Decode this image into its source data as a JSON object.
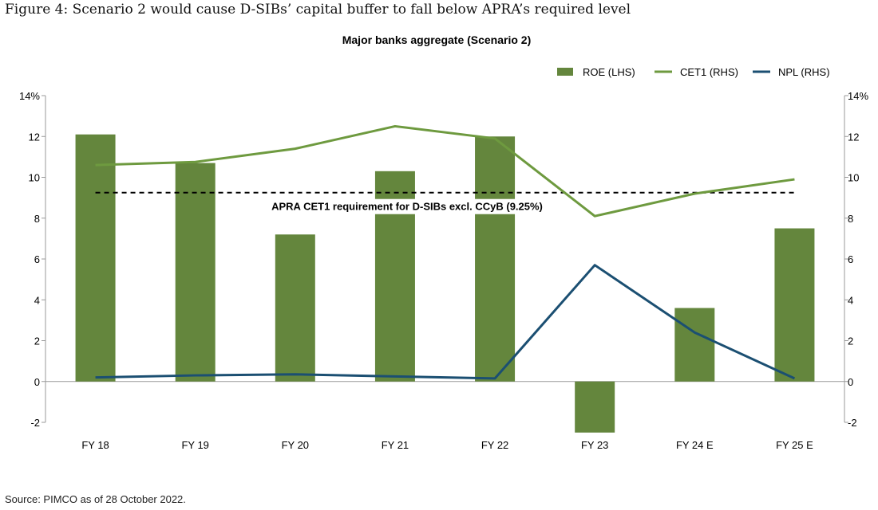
{
  "figure_title": "Figure 4: Scenario 2 would cause D-SIBs’ capital buffer to fall below APRA’s required level",
  "source": "Source: PIMCO as of 28 October 2022.",
  "colors": {
    "roe": "#64863d",
    "cet1": "#6e9a3f",
    "npl": "#1b4f72",
    "reference": "#000000"
  },
  "chart_data": {
    "type": "bar",
    "title": "Major banks aggregate (Scenario 2)",
    "categories": [
      "FY 18",
      "FY 19",
      "FY 20",
      "FY 21",
      "FY 22",
      "FY 23",
      "FY 24 E",
      "FY 25 E"
    ],
    "ylim": [
      -2,
      14
    ],
    "yticks": [
      -2,
      0,
      2,
      4,
      6,
      8,
      10,
      12,
      14
    ],
    "ytick_labels_left": [
      "-2",
      "0",
      "2",
      "4",
      "6",
      "8",
      "10",
      "12",
      "14%"
    ],
    "ytick_labels_right": [
      "-2",
      "0",
      "2",
      "4",
      "6",
      "8",
      "10",
      "12",
      "14%"
    ],
    "legend_position": "top-right",
    "series": [
      {
        "name": "ROE (LHS)",
        "kind": "bar",
        "values": [
          12.1,
          10.7,
          7.2,
          10.3,
          12.0,
          -2.5,
          3.6,
          7.5
        ]
      },
      {
        "name": "CET1 (RHS)",
        "kind": "line",
        "values": [
          10.6,
          10.75,
          11.4,
          12.5,
          11.9,
          8.1,
          9.2,
          9.9
        ]
      },
      {
        "name": "NPL (RHS)",
        "kind": "line",
        "values": [
          0.2,
          0.3,
          0.35,
          0.25,
          0.15,
          5.7,
          2.4,
          0.15
        ]
      }
    ],
    "reference_line": {
      "value": 9.25,
      "label": "APRA CET1 requirement for D-SIBs excl. CCyB (9.25%)"
    }
  }
}
